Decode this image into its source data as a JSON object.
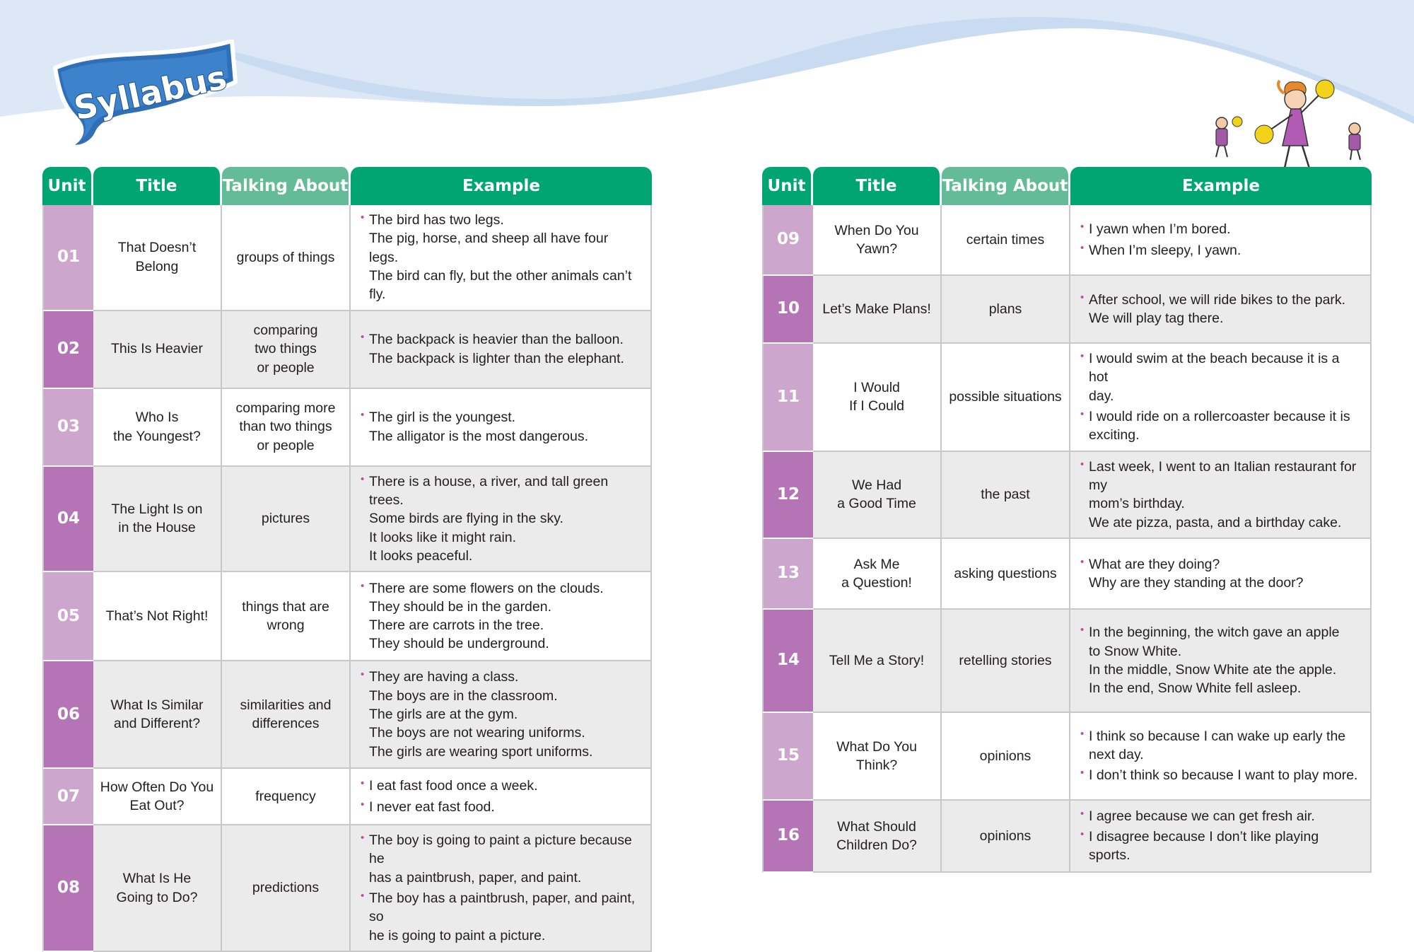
{
  "banner": {
    "label": "Syllabus"
  },
  "headers": {
    "unit": "Unit",
    "title": "Title",
    "talking": "Talking About",
    "example": "Example"
  },
  "colors": {
    "header_green": "#00a572",
    "header_light_green": "#64bb98",
    "unit_light": "#cda6cd",
    "unit_dark": "#b574b5",
    "bullet": "#c24aa6",
    "wave": "#dde8f6"
  },
  "units": [
    {
      "unit": "01",
      "title": "That Doesn’t\nBelong",
      "talking": "groups of things",
      "examples": [
        "The bird has two legs.\nThe pig, horse, and sheep all have four legs.\nThe bird can fly, but the other animals can’t fly."
      ]
    },
    {
      "unit": "02",
      "title": "This Is Heavier",
      "talking": "comparing\ntwo things\nor people",
      "examples": [
        "The backpack is heavier than the balloon.\nThe backpack is lighter than the elephant."
      ]
    },
    {
      "unit": "03",
      "title": "Who Is\nthe Youngest?",
      "talking": "comparing more\nthan two things\nor people",
      "examples": [
        "The girl is the youngest.\nThe alligator is the most dangerous."
      ]
    },
    {
      "unit": "04",
      "title": "The Light Is on\nin the House",
      "talking": "pictures",
      "examples": [
        "There is a house, a river, and tall green trees.\nSome birds are flying in the sky.\nIt looks like it might rain.\nIt looks peaceful."
      ]
    },
    {
      "unit": "05",
      "title": "That’s Not Right!",
      "talking": "things that are\nwrong",
      "examples": [
        "There are some flowers on the clouds.\nThey should be in the garden.\nThere are carrots in the tree.\nThey should be underground."
      ]
    },
    {
      "unit": "06",
      "title": "What Is Similar\nand Different?",
      "talking": "similarities and\ndifferences",
      "examples": [
        "They are having a class.\nThe boys are in the classroom.\nThe girls are at the gym.\nThe boys are not wearing uniforms.\nThe girls are wearing sport uniforms."
      ]
    },
    {
      "unit": "07",
      "title": "How Often Do You\nEat Out?",
      "talking": "frequency",
      "examples": [
        "I eat fast food once a week.",
        "I never eat fast food."
      ]
    },
    {
      "unit": "08",
      "title": "What Is He\nGoing to Do?",
      "talking": "predictions",
      "examples": [
        "The boy is going to paint a picture because he\nhas a paintbrush, paper, and paint.",
        "The boy has a paintbrush, paper, and paint, so\nhe is going to paint a picture."
      ]
    },
    {
      "unit": "09",
      "title": "When Do You\nYawn?",
      "talking": "certain times",
      "examples": [
        "I yawn when I’m bored.",
        "When I’m sleepy, I yawn."
      ]
    },
    {
      "unit": "10",
      "title": "Let’s Make Plans!",
      "talking": "plans",
      "examples": [
        "After school, we will ride bikes to the park.\nWe will play tag there."
      ]
    },
    {
      "unit": "11",
      "title": "I Would\nIf I Could",
      "talking": "possible situations",
      "examples": [
        "I would swim at the beach because it is a hot\nday.",
        "I would ride on a rollercoaster because it is\nexciting."
      ]
    },
    {
      "unit": "12",
      "title": "We Had\na Good Time",
      "talking": "the past",
      "examples": [
        "Last week, I went to an Italian restaurant for my\nmom’s birthday.\nWe ate pizza, pasta, and a birthday cake."
      ]
    },
    {
      "unit": "13",
      "title": "Ask Me\na Question!",
      "talking": "asking questions",
      "examples": [
        "What are they doing?\nWhy are they standing at the door?"
      ]
    },
    {
      "unit": "14",
      "title": "Tell Me a Story!",
      "talking": "retelling stories",
      "examples": [
        "In the beginning, the witch gave an apple\nto Snow White.\nIn the middle, Snow White ate the apple.\nIn the end, Snow White fell asleep."
      ]
    },
    {
      "unit": "15",
      "title": "What Do You\nThink?",
      "talking": "opinions",
      "examples": [
        "I think so because I can wake up early the\nnext day.",
        "I don’t think so because I want to play more."
      ]
    },
    {
      "unit": "16",
      "title": "What Should\nChildren Do?",
      "talking": "opinions",
      "examples": [
        "I agree because we can get fresh air.",
        "I disagree because I don’t like playing sports."
      ]
    }
  ]
}
